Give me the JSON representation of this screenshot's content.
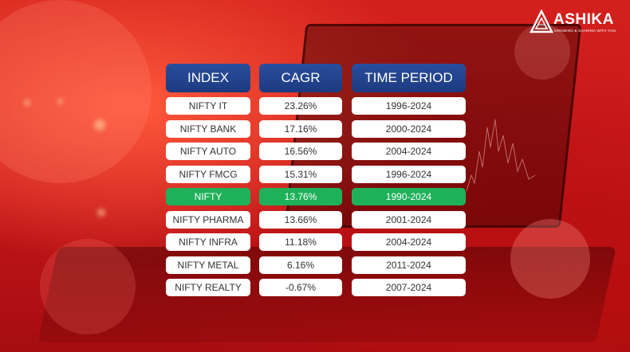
{
  "brand": {
    "name": "ASHIKA",
    "tagline": "GROWING & SHARING WITH YOU"
  },
  "colors": {
    "header": "#1f4088",
    "highlight": "#1fb15a",
    "background": "#c8181c"
  },
  "table": {
    "headers": [
      "INDEX",
      "CAGR",
      "TIME PERIOD"
    ],
    "rows": [
      {
        "index": "NIFTY IT",
        "cagr": "23.26%",
        "period": "1996-2024",
        "highlight": false
      },
      {
        "index": "NIFTY BANK",
        "cagr": "17.16%",
        "period": "2000-2024",
        "highlight": false
      },
      {
        "index": "NIFTY AUTO",
        "cagr": "16.56%",
        "period": "2004-2024",
        "highlight": false
      },
      {
        "index": "NIFTY FMCG",
        "cagr": "15.31%",
        "period": "1996-2024",
        "highlight": false
      },
      {
        "index": "NIFTY",
        "cagr": "13.76%",
        "period": "1990-2024",
        "highlight": true
      },
      {
        "index": "NIFTY PHARMA",
        "cagr": "13.66%",
        "period": "2001-2024",
        "highlight": false
      },
      {
        "index": "NIFTY INFRA",
        "cagr": "11.18%",
        "period": "2004-2024",
        "highlight": false
      },
      {
        "index": "NIFTY METAL",
        "cagr": "6.16%",
        "period": "2011-2024",
        "highlight": false
      },
      {
        "index": "NIFTY REALTY",
        "cagr": "-0.67%",
        "period": "2007-2024",
        "highlight": false
      }
    ]
  }
}
